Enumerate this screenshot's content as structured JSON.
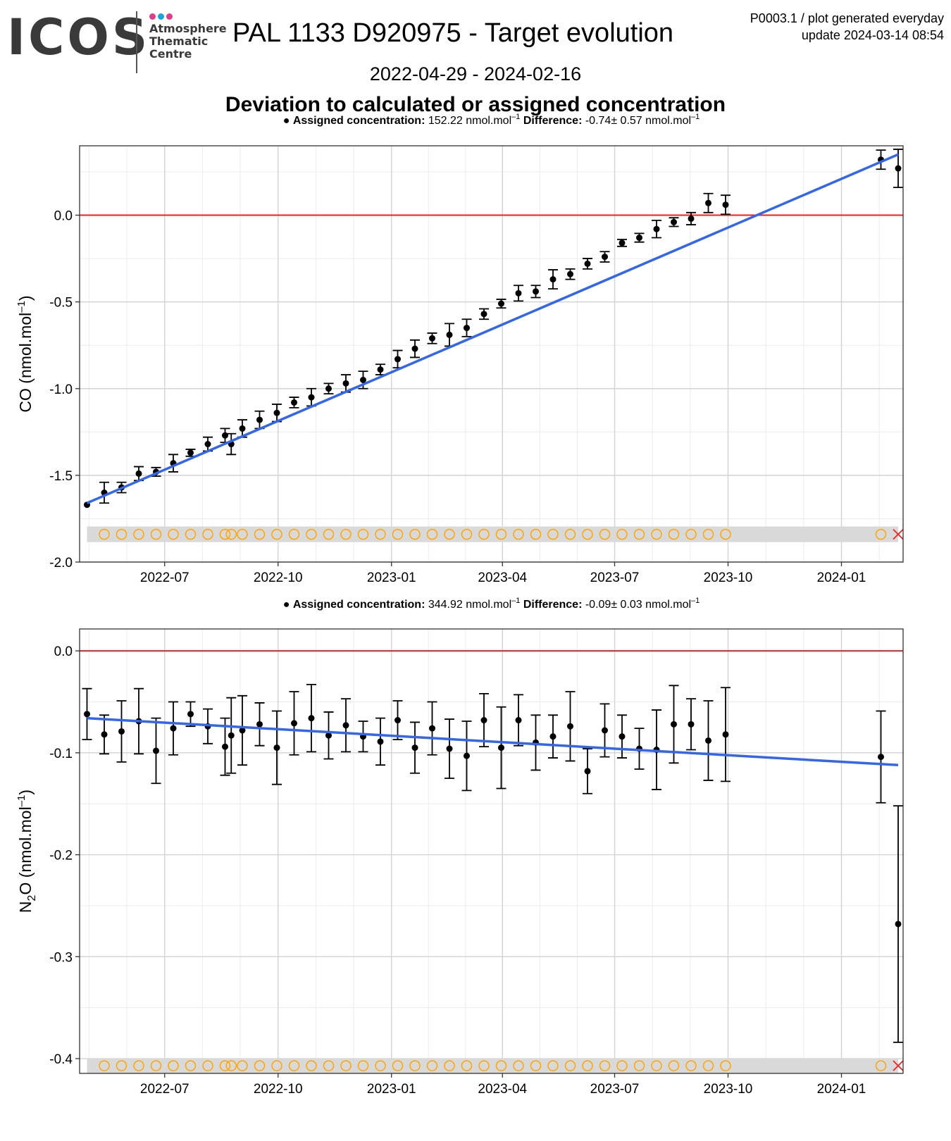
{
  "header": {
    "logo": "ICOS",
    "logo_sub": [
      "Atmosphere",
      "Thematic",
      "Centre"
    ],
    "title": "PAL 1133 D920975 - Target evolution",
    "meta_line1": "P0003.1 / plot generated everyday",
    "meta_line2": "update  2024-03-14 08:54",
    "date_range": "2022-04-29 - 2024-02-16",
    "subtitle": "Deviation to calculated or assigned concentration"
  },
  "colors": {
    "logo_dots": [
      "#e03c8a",
      "#1aa3e0",
      "#e03c8a"
    ],
    "fit_line": "#3366ee",
    "zero_line": "#ee2222",
    "open_circle": "#ffa500",
    "cross": "#ee2222",
    "band": "#d9d9d9"
  },
  "chart_data": [
    {
      "type": "scatter",
      "legend_note": {
        "assigned_label": "Assigned concentration:",
        "assigned_value": "152.22 nmol.mol",
        "difference_label": "Difference:",
        "difference_value": "-0.74",
        "difference_pm": "0.57 nmol.mol",
        "unit_exp": "–1"
      },
      "ylabel_prefix": "CO (nmol.mol",
      "ylabel_exp": "–1",
      "ylabel_suffix": ")",
      "ylim": [
        -2.0,
        0.4
      ],
      "yticks": [
        -2.0,
        -1.5,
        -1.0,
        -0.5,
        0.0
      ],
      "ytick_labels": [
        "-2.0",
        "-1.5",
        "-1.0",
        "-0.5",
        "0.0"
      ],
      "xlim": [
        "2022-04-23",
        "2024-02-20"
      ],
      "xticks": [
        "2022-07-01",
        "2022-10-01",
        "2023-01-01",
        "2023-04-01",
        "2023-07-01",
        "2023-10-01",
        "2024-01-01"
      ],
      "xtick_labels": [
        "2022-07",
        "2022-10",
        "2023-01",
        "2023-04",
        "2023-07",
        "2023-10",
        "2024-01"
      ],
      "zero_line": 0.0,
      "fit": [
        [
          "2022-04-29",
          -1.66
        ],
        [
          "2024-02-16",
          0.35
        ]
      ],
      "points": [
        [
          "2022-04-29",
          -1.67,
          0.0
        ],
        [
          "2022-05-13",
          -1.6,
          0.06
        ],
        [
          "2022-05-27",
          -1.57,
          0.03
        ],
        [
          "2022-06-10",
          -1.49,
          0.04
        ],
        [
          "2022-06-24",
          -1.48,
          0.025
        ],
        [
          "2022-07-08",
          -1.43,
          0.05
        ],
        [
          "2022-07-22",
          -1.37,
          0.02
        ],
        [
          "2022-08-05",
          -1.32,
          0.04
        ],
        [
          "2022-08-19",
          -1.27,
          0.04
        ],
        [
          "2022-08-24",
          -1.32,
          0.06
        ],
        [
          "2022-09-02",
          -1.23,
          0.05
        ],
        [
          "2022-09-16",
          -1.18,
          0.05
        ],
        [
          "2022-09-30",
          -1.14,
          0.05
        ],
        [
          "2022-10-14",
          -1.08,
          0.03
        ],
        [
          "2022-10-28",
          -1.05,
          0.05
        ],
        [
          "2022-11-11",
          -1.0,
          0.03
        ],
        [
          "2022-11-25",
          -0.97,
          0.05
        ],
        [
          "2022-12-09",
          -0.95,
          0.05
        ],
        [
          "2022-12-23",
          -0.89,
          0.03
        ],
        [
          "2023-01-06",
          -0.83,
          0.05
        ],
        [
          "2023-01-20",
          -0.77,
          0.05
        ],
        [
          "2023-02-03",
          -0.71,
          0.03
        ],
        [
          "2023-02-17",
          -0.69,
          0.065
        ],
        [
          "2023-03-03",
          -0.65,
          0.05
        ],
        [
          "2023-03-17",
          -0.57,
          0.03
        ],
        [
          "2023-03-31",
          -0.51,
          0.025
        ],
        [
          "2023-04-14",
          -0.45,
          0.045
        ],
        [
          "2023-04-28",
          -0.44,
          0.035
        ],
        [
          "2023-05-12",
          -0.37,
          0.055
        ],
        [
          "2023-05-26",
          -0.34,
          0.03
        ],
        [
          "2023-06-09",
          -0.28,
          0.03
        ],
        [
          "2023-06-23",
          -0.24,
          0.03
        ],
        [
          "2023-07-07",
          -0.16,
          0.02
        ],
        [
          "2023-07-21",
          -0.13,
          0.025
        ],
        [
          "2023-08-04",
          -0.08,
          0.05
        ],
        [
          "2023-08-18",
          -0.04,
          0.025
        ],
        [
          "2023-09-01",
          -0.02,
          0.035
        ],
        [
          "2023-09-15",
          0.07,
          0.055
        ],
        [
          "2023-09-29",
          0.06,
          0.055
        ],
        [
          "2024-02-02",
          0.32,
          0.055
        ],
        [
          "2024-02-16",
          0.27,
          0.11
        ]
      ],
      "circles": [
        "2022-05-13",
        "2022-05-27",
        "2022-06-10",
        "2022-06-24",
        "2022-07-08",
        "2022-07-22",
        "2022-08-05",
        "2022-08-19",
        "2022-08-24",
        "2022-09-02",
        "2022-09-16",
        "2022-09-30",
        "2022-10-14",
        "2022-10-28",
        "2022-11-11",
        "2022-11-25",
        "2022-12-09",
        "2022-12-23",
        "2023-01-06",
        "2023-01-20",
        "2023-02-03",
        "2023-02-17",
        "2023-03-03",
        "2023-03-17",
        "2023-03-31",
        "2023-04-14",
        "2023-04-28",
        "2023-05-12",
        "2023-05-26",
        "2023-06-09",
        "2023-06-23",
        "2023-07-07",
        "2023-07-21",
        "2023-08-04",
        "2023-08-18",
        "2023-09-01",
        "2023-09-15",
        "2023-09-29",
        "2024-02-02"
      ],
      "cross": "2024-02-16",
      "band_y": -1.84,
      "band_halfheight": 0.045
    },
    {
      "type": "scatter",
      "legend_note": {
        "assigned_label": "Assigned concentration:",
        "assigned_value": "344.92 nmol.mol",
        "difference_label": "Difference:",
        "difference_value": "-0.09",
        "difference_pm": "0.03 nmol.mol",
        "unit_exp": "–1"
      },
      "ylabel_prefix": "N",
      "ylabel_sub": "2",
      "ylabel_mid": "O (nmol.mol",
      "ylabel_exp": "–1",
      "ylabel_suffix": ")",
      "ylim": [
        -0.4145,
        0.0215
      ],
      "yticks": [
        -0.4,
        -0.3,
        -0.2,
        -0.1,
        0.0
      ],
      "ytick_labels": [
        "-0.4",
        "-0.3",
        "-0.2",
        "-0.1",
        "0.0"
      ],
      "xlim": [
        "2022-04-23",
        "2024-02-20"
      ],
      "xticks": [
        "2022-07-01",
        "2022-10-01",
        "2023-01-01",
        "2023-04-01",
        "2023-07-01",
        "2023-10-01",
        "2024-01-01"
      ],
      "xtick_labels": [
        "2022-07",
        "2022-10",
        "2023-01",
        "2023-04",
        "2023-07",
        "2023-10",
        "2024-01"
      ],
      "zero_line": 0.0,
      "fit": [
        [
          "2022-04-29",
          -0.066
        ],
        [
          "2024-02-16",
          -0.112
        ]
      ],
      "points": [
        [
          "2022-04-29",
          -0.062,
          0.025
        ],
        [
          "2022-05-13",
          -0.082,
          0.019
        ],
        [
          "2022-05-27",
          -0.079,
          0.03
        ],
        [
          "2022-06-10",
          -0.069,
          0.032
        ],
        [
          "2022-06-24",
          -0.098,
          0.032
        ],
        [
          "2022-07-08",
          -0.076,
          0.026
        ],
        [
          "2022-07-22",
          -0.062,
          0.012
        ],
        [
          "2022-08-05",
          -0.074,
          0.017
        ],
        [
          "2022-08-19",
          -0.094,
          0.028
        ],
        [
          "2022-08-24",
          -0.083,
          0.037
        ],
        [
          "2022-09-02",
          -0.078,
          0.034
        ],
        [
          "2022-09-16",
          -0.072,
          0.021
        ],
        [
          "2022-09-30",
          -0.095,
          0.036
        ],
        [
          "2022-10-14",
          -0.071,
          0.031
        ],
        [
          "2022-10-28",
          -0.066,
          0.033
        ],
        [
          "2022-11-11",
          -0.083,
          0.023
        ],
        [
          "2022-11-25",
          -0.073,
          0.026
        ],
        [
          "2022-12-09",
          -0.084,
          0.015
        ],
        [
          "2022-12-23",
          -0.089,
          0.023
        ],
        [
          "2023-01-06",
          -0.068,
          0.019
        ],
        [
          "2023-01-20",
          -0.095,
          0.025
        ],
        [
          "2023-02-03",
          -0.076,
          0.026
        ],
        [
          "2023-02-17",
          -0.096,
          0.029
        ],
        [
          "2023-03-03",
          -0.103,
          0.034
        ],
        [
          "2023-03-17",
          -0.068,
          0.026
        ],
        [
          "2023-03-31",
          -0.095,
          0.04
        ],
        [
          "2023-04-14",
          -0.068,
          0.025
        ],
        [
          "2023-04-28",
          -0.09,
          0.027
        ],
        [
          "2023-05-12",
          -0.084,
          0.021
        ],
        [
          "2023-05-26",
          -0.074,
          0.034
        ],
        [
          "2023-06-09",
          -0.118,
          0.022
        ],
        [
          "2023-06-23",
          -0.078,
          0.026
        ],
        [
          "2023-07-07",
          -0.084,
          0.021
        ],
        [
          "2023-07-21",
          -0.096,
          0.02
        ],
        [
          "2023-08-04",
          -0.097,
          0.039
        ],
        [
          "2023-08-18",
          -0.072,
          0.038
        ],
        [
          "2023-09-01",
          -0.072,
          0.025
        ],
        [
          "2023-09-15",
          -0.088,
          0.039
        ],
        [
          "2023-09-29",
          -0.082,
          0.046
        ],
        [
          "2024-02-02",
          -0.104,
          0.045
        ],
        [
          "2024-02-16",
          -0.268,
          0.116
        ]
      ],
      "circles": [
        "2022-05-13",
        "2022-05-27",
        "2022-06-10",
        "2022-06-24",
        "2022-07-08",
        "2022-07-22",
        "2022-08-05",
        "2022-08-19",
        "2022-08-24",
        "2022-09-02",
        "2022-09-16",
        "2022-09-30",
        "2022-10-14",
        "2022-10-28",
        "2022-11-11",
        "2022-11-25",
        "2022-12-09",
        "2022-12-23",
        "2023-01-06",
        "2023-01-20",
        "2023-02-03",
        "2023-02-17",
        "2023-03-03",
        "2023-03-17",
        "2023-03-31",
        "2023-04-14",
        "2023-04-28",
        "2023-05-12",
        "2023-05-26",
        "2023-06-09",
        "2023-06-23",
        "2023-07-07",
        "2023-07-21",
        "2023-08-04",
        "2023-08-18",
        "2023-09-01",
        "2023-09-15",
        "2023-09-29",
        "2024-02-02"
      ],
      "cross": "2024-02-16",
      "band_y": -0.407,
      "band_halfheight": 0.0075
    }
  ]
}
